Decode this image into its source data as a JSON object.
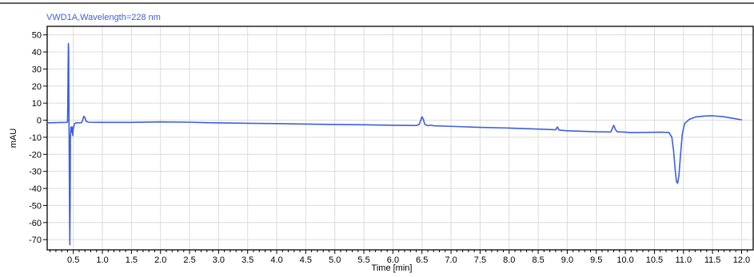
{
  "chart_data": {
    "type": "line",
    "title": "VWD1A,Wavelength=228 nm",
    "xlabel": "Time [min]",
    "ylabel": "mAU",
    "xlim": [
      0.05,
      12.2
    ],
    "ylim": [
      -76,
      55
    ],
    "x_ticks": [
      "0.5",
      "1.0",
      "1.5",
      "2.0",
      "2.5",
      "3.0",
      "3.5",
      "4.0",
      "4.5",
      "5.0",
      "5.5",
      "6.0",
      "6.5",
      "7.0",
      "7.5",
      "8.0",
      "8.5",
      "9.0",
      "9.5",
      "10.0",
      "10.5",
      "11.0",
      "11.5",
      "12.0"
    ],
    "y_ticks": [
      "50",
      "40",
      "30",
      "20",
      "10",
      "0",
      "-10",
      "-20",
      "-30",
      "-40",
      "-50",
      "-60",
      "-70"
    ],
    "grid": true,
    "colors": {
      "series": "#3c5fe0",
      "title": "#3c5fe0",
      "grid": "#dcdcdc",
      "axis": "#000000"
    },
    "series": [
      {
        "points": [
          [
            0.05,
            -1.6
          ],
          [
            0.2,
            -1.4
          ],
          [
            0.36,
            -1.3
          ],
          [
            0.4,
            -1.2
          ],
          [
            0.405,
            10
          ],
          [
            0.41,
            30
          ],
          [
            0.415,
            45
          ],
          [
            0.42,
            40
          ],
          [
            0.425,
            5
          ],
          [
            0.43,
            -25
          ],
          [
            0.435,
            -55
          ],
          [
            0.44,
            -73
          ],
          [
            0.445,
            -50
          ],
          [
            0.45,
            -10
          ],
          [
            0.46,
            -4
          ],
          [
            0.47,
            -7
          ],
          [
            0.48,
            -4
          ],
          [
            0.49,
            -9
          ],
          [
            0.5,
            -5
          ],
          [
            0.52,
            -2
          ],
          [
            0.55,
            -1.5
          ],
          [
            0.6,
            -1.6
          ],
          [
            0.64,
            -1.5
          ],
          [
            0.66,
            0
          ],
          [
            0.68,
            2.3
          ],
          [
            0.7,
            1.5
          ],
          [
            0.72,
            -0.6
          ],
          [
            0.76,
            -1.2
          ],
          [
            1.0,
            -1.3
          ],
          [
            1.5,
            -1.3
          ],
          [
            2.0,
            -1.0
          ],
          [
            2.5,
            -1.2
          ],
          [
            3.0,
            -1.6
          ],
          [
            3.5,
            -1.8
          ],
          [
            4.0,
            -2.0
          ],
          [
            4.5,
            -2.3
          ],
          [
            5.0,
            -2.5
          ],
          [
            5.5,
            -2.7
          ],
          [
            6.0,
            -3.0
          ],
          [
            6.4,
            -3.1
          ],
          [
            6.45,
            -2.6
          ],
          [
            6.48,
            0
          ],
          [
            6.5,
            2.0
          ],
          [
            6.52,
            0.8
          ],
          [
            6.55,
            -2.5
          ],
          [
            6.6,
            -3.2
          ],
          [
            6.66,
            -2.9
          ],
          [
            6.7,
            -3.3
          ],
          [
            7.0,
            -3.6
          ],
          [
            7.5,
            -4.2
          ],
          [
            8.0,
            -4.6
          ],
          [
            8.5,
            -5.2
          ],
          [
            8.8,
            -5.6
          ],
          [
            8.83,
            -4.0
          ],
          [
            8.86,
            -5.8
          ],
          [
            9.0,
            -6.2
          ],
          [
            9.5,
            -6.8
          ],
          [
            9.75,
            -6.9
          ],
          [
            9.78,
            -4.5
          ],
          [
            9.8,
            -3.0
          ],
          [
            9.83,
            -5.5
          ],
          [
            9.86,
            -6.8
          ],
          [
            10.0,
            -7.0
          ],
          [
            10.1,
            -7.3
          ],
          [
            10.3,
            -7.2
          ],
          [
            10.6,
            -7.0
          ],
          [
            10.75,
            -7.2
          ],
          [
            10.8,
            -10
          ],
          [
            10.83,
            -18
          ],
          [
            10.86,
            -30
          ],
          [
            10.88,
            -36
          ],
          [
            10.9,
            -37
          ],
          [
            10.92,
            -33
          ],
          [
            10.95,
            -20
          ],
          [
            10.98,
            -8
          ],
          [
            11.02,
            -2
          ],
          [
            11.1,
            0.5
          ],
          [
            11.2,
            1.8
          ],
          [
            11.35,
            2.4
          ],
          [
            11.5,
            2.6
          ],
          [
            11.7,
            2.0
          ],
          [
            11.9,
            0.8
          ],
          [
            12.0,
            0.2
          ],
          [
            12.0,
            0.1
          ]
        ]
      }
    ]
  }
}
